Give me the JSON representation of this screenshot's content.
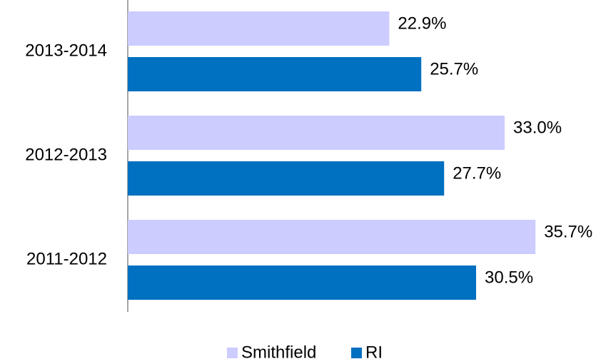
{
  "chart_data": {
    "type": "hbar",
    "categories": [
      "2013-2014",
      "2012-2013",
      "2011-2012"
    ],
    "series": [
      {
        "name": "Smithfield",
        "color": "#ccccff",
        "values": [
          22.9,
          33.0,
          35.7
        ],
        "value_labels": [
          "22.9%",
          "33.0%",
          "35.7%"
        ]
      },
      {
        "name": "RI",
        "color": "#0070c0",
        "values": [
          25.7,
          27.7,
          30.5
        ],
        "value_labels": [
          "25.7%",
          "27.7%",
          "30.5%"
        ]
      }
    ],
    "xlim": [
      0,
      40
    ],
    "legend": "bottom"
  }
}
